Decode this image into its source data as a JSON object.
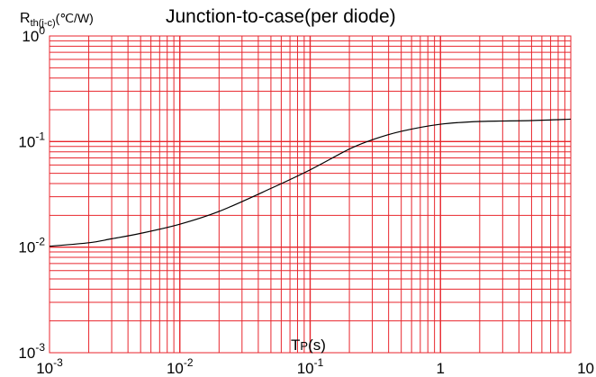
{
  "chart_data": {
    "type": "line",
    "title": "Junction-to-case(per diode)",
    "ylabel": {
      "base": "R",
      "subscript": "th(j-c)",
      "unit": "(℃/W)"
    },
    "xlabel": {
      "base": "T",
      "subscript": "P",
      "unit": "(s)"
    },
    "x_scale": "log",
    "y_scale": "log",
    "xlim": [
      0.001,
      10
    ],
    "ylim": [
      0.001,
      1
    ],
    "x_ticks": [
      {
        "value": 0.001,
        "mantissa": "10",
        "exp": "-3"
      },
      {
        "value": 0.01,
        "mantissa": "10",
        "exp": "-2"
      },
      {
        "value": 0.1,
        "mantissa": "10",
        "exp": "-1"
      },
      {
        "value": 1,
        "mantissa": "1",
        "exp": ""
      },
      {
        "value": 10,
        "mantissa": "10",
        "exp": ""
      }
    ],
    "y_ticks": [
      {
        "value": 1,
        "mantissa": "10",
        "exp": "0"
      },
      {
        "value": 0.1,
        "mantissa": "10",
        "exp": "-1"
      },
      {
        "value": 0.01,
        "mantissa": "10",
        "exp": "-2"
      },
      {
        "value": 0.001,
        "mantissa": "10",
        "exp": "-3"
      }
    ],
    "grid": true,
    "grid_color": "#e8262d",
    "line_color": "#000000",
    "series": [
      {
        "x": [
          0.001,
          0.002,
          0.003,
          0.005,
          0.01,
          0.02,
          0.05,
          0.1,
          0.2,
          0.3,
          0.5,
          1,
          2,
          5,
          10
        ],
        "y": [
          0.0102,
          0.011,
          0.012,
          0.0135,
          0.0165,
          0.0218,
          0.036,
          0.054,
          0.085,
          0.104,
          0.125,
          0.146,
          0.155,
          0.158,
          0.163
        ]
      }
    ]
  }
}
